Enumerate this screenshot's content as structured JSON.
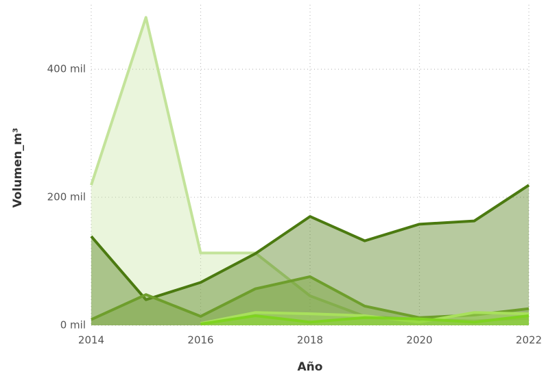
{
  "chart_data": {
    "type": "area",
    "x_label": "Año",
    "y_label": "Volumen_m³",
    "x": [
      2014,
      2015,
      2016,
      2017,
      2018,
      2019,
      2020,
      2021,
      2022
    ],
    "xlim": [
      2014,
      2022
    ],
    "xticks": [
      2014,
      2016,
      2018,
      2020,
      2022
    ],
    "ylim": [
      0,
      490
    ],
    "yticks": [
      {
        "value": 0,
        "label": "0 mil"
      },
      {
        "value": 200,
        "label": "200 mil"
      },
      {
        "value": 400,
        "label": "400 mil"
      }
    ],
    "grid": true,
    "series": [
      {
        "color": "#c3e39a",
        "values": [
          219,
          481,
          113,
          113,
          46,
          14,
          9,
          7,
          11
        ]
      },
      {
        "color": "#4b7a10",
        "values": [
          139,
          40,
          67,
          112,
          170,
          132,
          158,
          163,
          219
        ]
      },
      {
        "color": "#6e9e2c",
        "values": [
          9,
          48,
          14,
          57,
          76,
          30,
          12,
          16,
          26
        ]
      },
      {
        "color": "#a8e05c",
        "values": [
          null,
          null,
          3,
          20,
          18,
          15,
          5,
          20,
          18
        ]
      },
      {
        "color": "#7fd321",
        "values": [
          null,
          null,
          2,
          15,
          5,
          12,
          10,
          5,
          15
        ]
      }
    ]
  }
}
